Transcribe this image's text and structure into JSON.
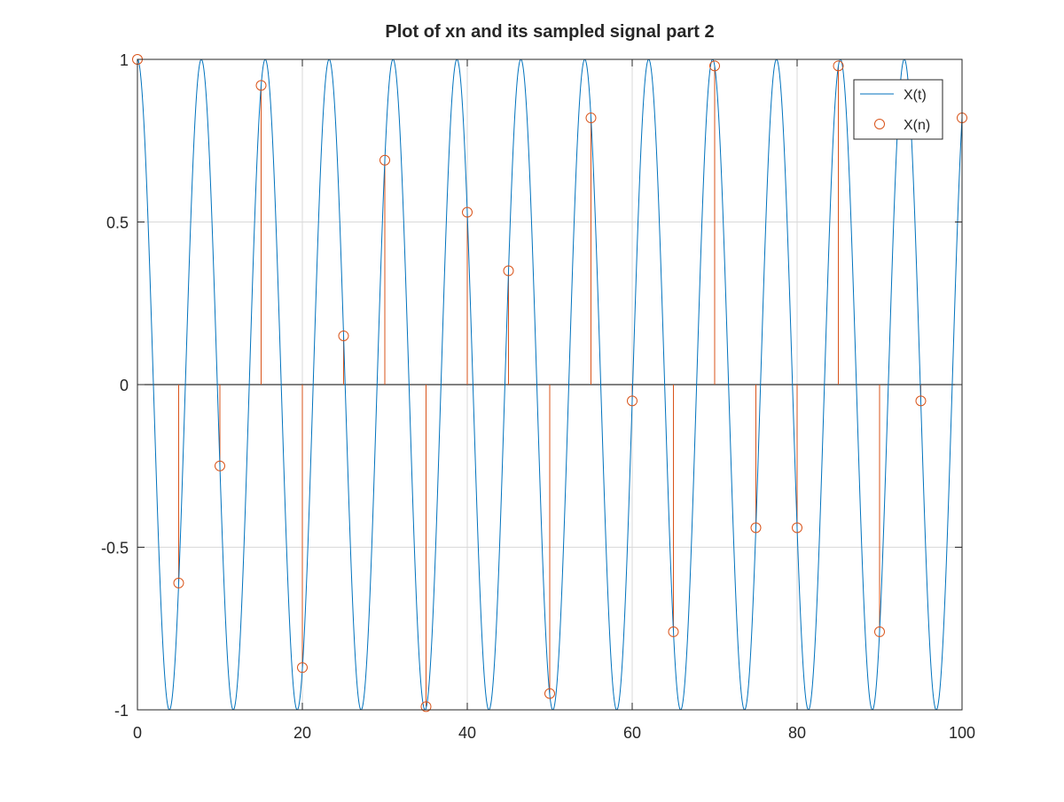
{
  "chart_data": {
    "type": "line",
    "title": "Plot of xn and its sampled signal part 2",
    "xlabel": "",
    "ylabel": "",
    "xlim": [
      0,
      100
    ],
    "ylim": [
      -1,
      1
    ],
    "x_ticks": [
      0,
      20,
      40,
      60,
      80,
      100
    ],
    "x_tick_labels": [
      "0",
      "20",
      "40",
      "60",
      "80",
      "100"
    ],
    "y_ticks": [
      -1,
      -0.5,
      0,
      0.5,
      1
    ],
    "y_tick_labels": [
      "-1",
      "-0.5",
      "0",
      "0.5",
      "1"
    ],
    "grid": true,
    "legend_position": "top-right",
    "colors": {
      "continuous": "#0072bd",
      "sampled": "#d95319",
      "axis": "#262626",
      "grid": "#d9d9d9"
    },
    "series": [
      {
        "name": "X(t)",
        "kind": "continuous",
        "function": "cos",
        "amplitude": 1,
        "period": 7.75,
        "x_range": [
          0,
          100
        ]
      },
      {
        "name": "X(n)",
        "kind": "stem",
        "x": [
          0,
          5,
          10,
          15,
          20,
          25,
          30,
          35,
          40,
          45,
          50,
          55,
          60,
          65,
          70,
          75,
          80,
          85,
          90,
          95,
          100
        ],
        "values": [
          1,
          -0.61,
          -0.25,
          0.92,
          -0.87,
          0.15,
          0.69,
          -0.99,
          0.53,
          0.35,
          -0.95,
          0.82,
          -0.05,
          -0.76,
          0.98,
          -0.44,
          -0.44,
          0.98,
          -0.76,
          -0.05,
          0.82
        ]
      }
    ]
  }
}
